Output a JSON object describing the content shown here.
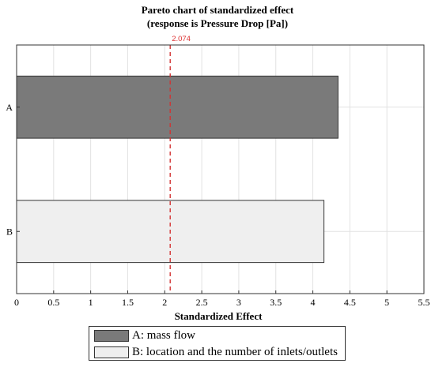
{
  "chart_data": {
    "type": "bar",
    "orientation": "horizontal",
    "title": "Pareto chart of standardized effect",
    "subtitle": "(response is Pressure Drop [Pa])",
    "xlabel": "Standardized Effect",
    "ylabel": "",
    "xlim": [
      0,
      5.5
    ],
    "xticks": [
      "0",
      "0.5",
      "1",
      "1.5",
      "2",
      "2.5",
      "3",
      "3.5",
      "4",
      "4.5",
      "5",
      "5.5"
    ],
    "categories": [
      "A",
      "B"
    ],
    "values": [
      4.34,
      4.15
    ],
    "colors": [
      "#7a7a7a",
      "#efefef"
    ],
    "reference_line": {
      "value": 2.074,
      "label": "2.074",
      "color": "#d33333",
      "style": "dashed"
    },
    "grid": true,
    "legend_position": "bottom",
    "legend": [
      {
        "label": "A: mass flow",
        "color": "#7a7a7a"
      },
      {
        "label": "B: location and the number of inlets/outlets",
        "color": "#efefef"
      }
    ]
  }
}
